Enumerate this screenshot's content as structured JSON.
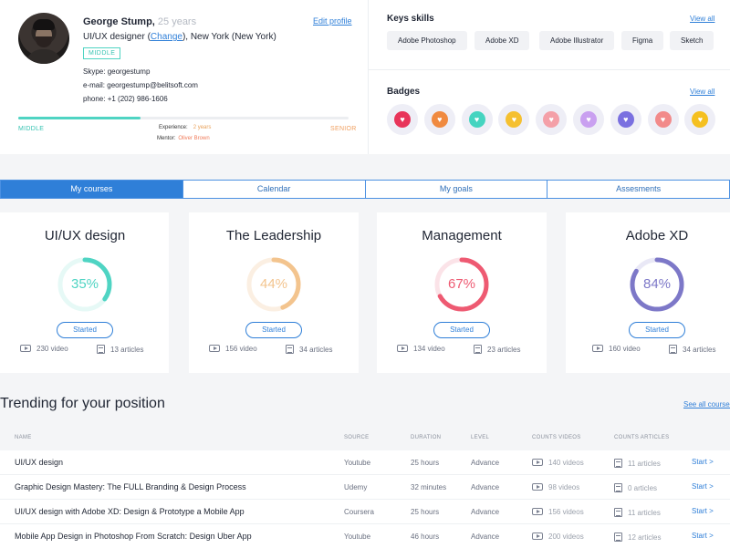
{
  "profile": {
    "name": "George Stump,",
    "age": "25 years",
    "edit_profile": "Edit profile",
    "role_prefix": "UI/UX designer (",
    "role_change": "Change",
    "role_suffix": "), New York (New York)",
    "level_badge": "MIDDLE",
    "skype_label": "Skype:",
    "skype": "georgestump",
    "email_label": "e-mail:",
    "email": "georgestump@belitsoft.com",
    "phone_label": "phone:",
    "phone": "+1 (202) 986-1606",
    "progress_fraction": 0.37,
    "level_left": "MIDDLE",
    "level_right": "SENIOR",
    "experience_label": "Experience:",
    "experience": "2 years",
    "mentor_label": "Mentor:",
    "mentor": "Oliver Brown"
  },
  "skills": {
    "title": "Keys skills",
    "view_all": "View all",
    "items": [
      "Adobe Photoshop",
      "Adobe XD",
      "Adobe Illustrator",
      "Figma",
      "Sketch"
    ]
  },
  "badges": {
    "title": "Badges",
    "view_all": "View all",
    "colors": [
      "#e8345a",
      "#f08a40",
      "#45d4c0",
      "#f5c030",
      "#f4a0a8",
      "#c9a0f0",
      "#7a70e0",
      "#f28a8a",
      "#f5c020"
    ]
  },
  "tabs": [
    "My courses",
    "Calendar",
    "My goals",
    "Assesments"
  ],
  "courses": [
    {
      "title": "UI/UX design",
      "percent": 35,
      "percent_label": "35%",
      "color": "#4fd4c3",
      "track": "#e6f9f6",
      "status": "Started",
      "videos": "230 video",
      "articles": "13 articles"
    },
    {
      "title": "The Leadership",
      "percent": 44,
      "percent_label": "44%",
      "color": "#f3c48e",
      "track": "#fbefe2",
      "status": "Started",
      "videos": "156 video",
      "articles": "34 articles"
    },
    {
      "title": "Management",
      "percent": 67,
      "percent_label": "67%",
      "color": "#ee5a72",
      "track": "#fbe3e8",
      "status": "Started",
      "videos": "134 video",
      "articles": "23 articles"
    },
    {
      "title": "Adobe XD",
      "percent": 84,
      "percent_label": "84%",
      "color": "#7d78c8",
      "track": "#e9e8f6",
      "status": "Started",
      "videos": "160 video",
      "articles": "34 articles"
    }
  ],
  "trending": {
    "title": "Trending for your position",
    "see_all": "See all courses",
    "columns": [
      "NAME",
      "SOURCE",
      "DURATION",
      "LEVEL",
      "COUNTS VIDEOS",
      "COUNTS ARTICLES"
    ],
    "start_label": "Start",
    "rows": [
      {
        "name": "UI/UX design",
        "source": "Youtube",
        "duration": "25 hours",
        "level": "Advance",
        "videos": "140 videos",
        "articles": "11 articles"
      },
      {
        "name": "Graphic Design Mastery: The FULL Branding & Design Process",
        "source": "Udemy",
        "duration": "32 minutes",
        "level": "Advance",
        "videos": "98 videos",
        "articles": "0 articles"
      },
      {
        "name": "UI/UX design with Adobe XD: Design & Prototype a Mobile App",
        "source": "Coursera",
        "duration": "25 hours",
        "level": "Advance",
        "videos": "156 videos",
        "articles": "11 articles"
      },
      {
        "name": "Mobile App Design in Photoshop From Scratch: Design Uber App",
        "source": "Youtube",
        "duration": "46 hours",
        "level": "Advance",
        "videos": "200 videos",
        "articles": "12 articles"
      }
    ]
  }
}
